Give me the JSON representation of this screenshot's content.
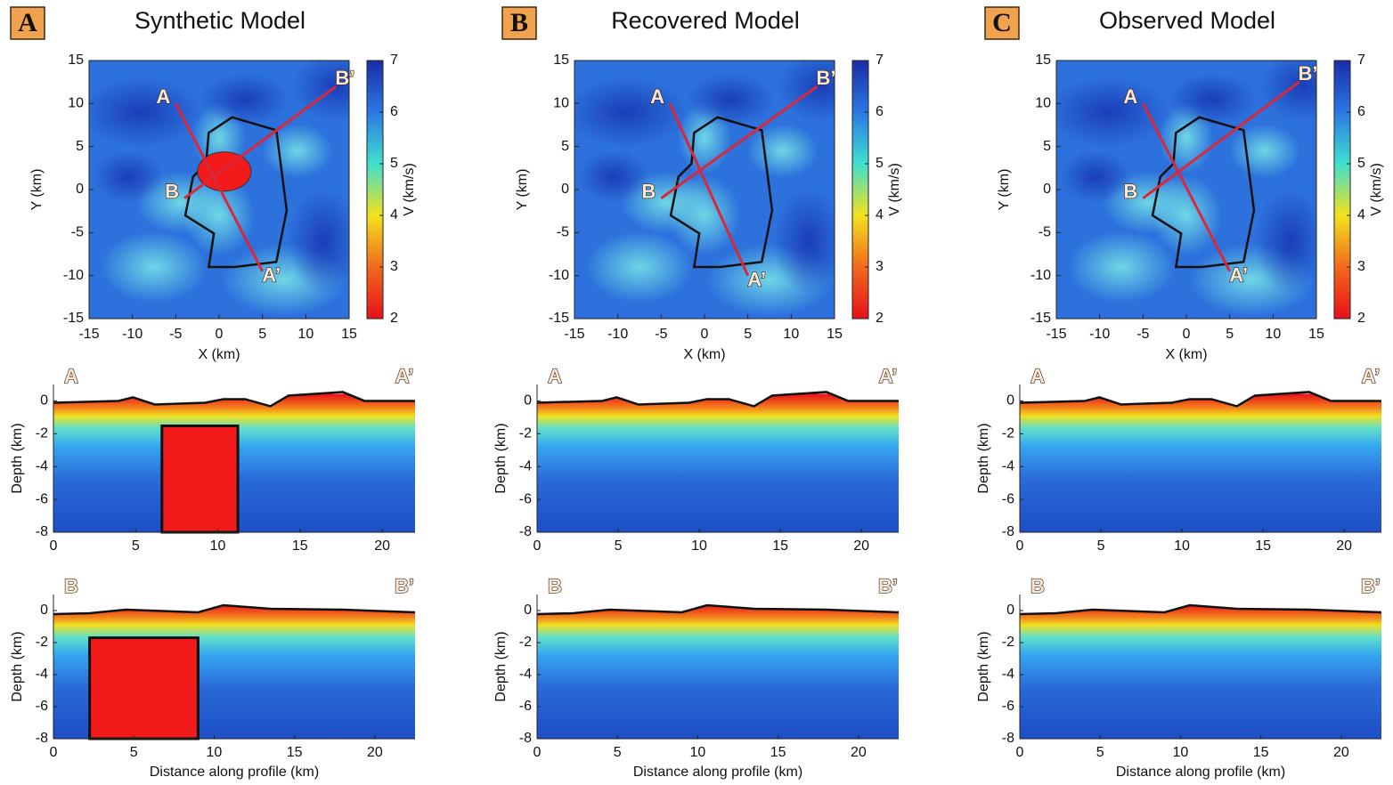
{
  "chart_data": [
    {
      "type": "contour",
      "panel": "A",
      "title": "Synthetic Model",
      "x_label": "X (km)",
      "y_label": "Y (km)",
      "xlim": [
        -15,
        15
      ],
      "ylim": [
        -15,
        15
      ],
      "xticks": [
        -15,
        -10,
        -5,
        0,
        5,
        10,
        15
      ],
      "yticks": [
        -15,
        -10,
        -5,
        0,
        5,
        10,
        15
      ],
      "colorbar": {
        "label": "V (km/s)",
        "lim": [
          2,
          7
        ],
        "ticks": [
          2,
          3,
          4,
          5,
          6,
          7
        ]
      },
      "profiles": [
        {
          "start_label": "A",
          "end_label": "A’",
          "start": [
            -5,
            10
          ],
          "end": [
            5,
            -9.5
          ]
        },
        {
          "start_label": "B",
          "end_label": "B’",
          "start": [
            -4,
            -1
          ],
          "end": [
            13.5,
            12
          ]
        }
      ]
    },
    {
      "type": "contour",
      "y_label": "Depth (km)",
      "xlim": [
        0,
        22
      ],
      "ylim": [
        -8,
        1
      ],
      "xticks": [
        0,
        5,
        10,
        15,
        20
      ],
      "yticks": [
        -8,
        -6,
        -4,
        -2,
        0
      ],
      "start_label": "A",
      "end_label": "A’"
    },
    {
      "type": "contour",
      "y_label": "Depth (km)",
      "x_label": "Distance along profile (km)",
      "xlim": [
        0,
        22.5
      ],
      "ylim": [
        -8,
        1
      ],
      "xticks": [
        0,
        5,
        10,
        15,
        20
      ],
      "yticks": [
        -8,
        -6,
        -4,
        -2,
        0
      ],
      "start_label": "B",
      "end_label": "B’"
    },
    {
      "type": "contour",
      "panel": "B",
      "title": "Recovered Model",
      "x_label": "X (km)",
      "y_label": "Y (km)",
      "xlim": [
        -15,
        15
      ],
      "ylim": [
        -15,
        15
      ],
      "xticks": [
        -15,
        -10,
        -5,
        0,
        5,
        10,
        15
      ],
      "yticks": [
        -15,
        -10,
        -5,
        0,
        5,
        10,
        15
      ],
      "colorbar": {
        "label": "V (km/s)",
        "lim": [
          2,
          7
        ],
        "ticks": [
          2,
          3,
          4,
          5,
          6,
          7
        ]
      },
      "profiles": [
        {
          "start_label": "A",
          "end_label": "A’",
          "start": [
            -4,
            10
          ],
          "end": [
            5,
            -10
          ]
        },
        {
          "start_label": "B",
          "end_label": "B’",
          "start": [
            -5,
            -1
          ],
          "end": [
            13,
            12
          ]
        }
      ]
    },
    {
      "type": "contour",
      "y_label": "Depth (km)",
      "xlim": [
        0,
        22.3
      ],
      "ylim": [
        -8,
        1
      ],
      "xticks": [
        0,
        5,
        10,
        15,
        20
      ],
      "yticks": [
        -8,
        -6,
        -4,
        -2,
        0
      ],
      "start_label": "A",
      "end_label": "A’"
    },
    {
      "type": "contour",
      "y_label": "Depth (km)",
      "x_label": "Distance along profile (km)",
      "xlim": [
        0,
        22.5
      ],
      "ylim": [
        -8,
        1
      ],
      "xticks": [
        0,
        5,
        10,
        15,
        20
      ],
      "yticks": [
        -8,
        -6,
        -4,
        -2,
        0
      ],
      "start_label": "B",
      "end_label": "B’"
    },
    {
      "type": "contour",
      "panel": "C",
      "title": "Observed Model",
      "x_label": "X (km)",
      "y_label": "Y (km)",
      "xlim": [
        -15,
        15
      ],
      "ylim": [
        -15,
        15
      ],
      "xticks": [
        -15,
        -10,
        -5,
        0,
        5,
        10,
        15
      ],
      "yticks": [
        -15,
        -10,
        -5,
        0,
        5,
        10,
        15
      ],
      "colorbar": {
        "label": "V (km/s)",
        "lim": [
          2,
          7
        ],
        "ticks": [
          2,
          3,
          4,
          5,
          6,
          7
        ]
      },
      "profiles": [
        {
          "start_label": "A",
          "end_label": "A’",
          "start": [
            -5,
            10
          ],
          "end": [
            5,
            -9.5
          ]
        },
        {
          "start_label": "B",
          "end_label": "B’",
          "start": [
            -5,
            -1
          ],
          "end": [
            13,
            12.5
          ]
        }
      ]
    },
    {
      "type": "contour",
      "y_label": "Depth (km)",
      "xlim": [
        0,
        22.3
      ],
      "ylim": [
        -8,
        1
      ],
      "xticks": [
        0,
        5,
        10,
        15,
        20
      ],
      "yticks": [
        -8,
        -6,
        -4,
        -2,
        0
      ],
      "start_label": "A",
      "end_label": "A’"
    },
    {
      "type": "contour",
      "y_label": "Depth (km)",
      "x_label": "Distance along profile (km)",
      "xlim": [
        0,
        22.5
      ],
      "ylim": [
        -8,
        1
      ],
      "xticks": [
        0,
        5,
        10,
        15,
        20
      ],
      "yticks": [
        -8,
        -6,
        -4,
        -2,
        0
      ],
      "start_label": "B",
      "end_label": "B’"
    }
  ]
}
